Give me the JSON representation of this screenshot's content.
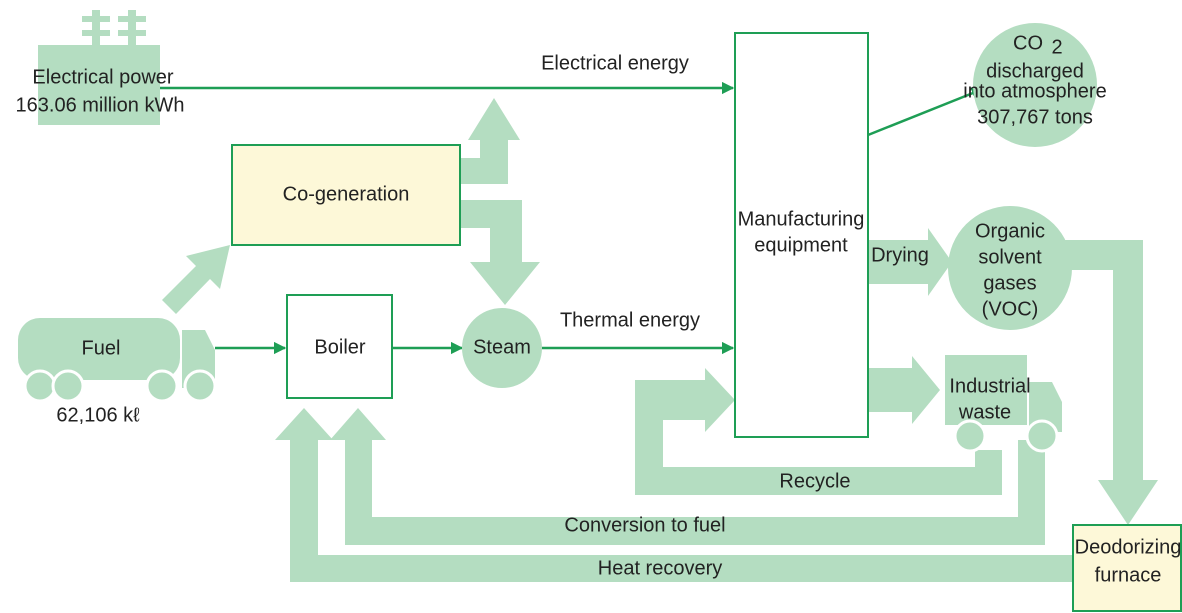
{
  "power": {
    "label": "Electrical power",
    "amount": "163.06 million kWh"
  },
  "flows": {
    "electrical": "Electrical energy",
    "thermal": "Thermal energy",
    "drying": "Drying",
    "recycle": "Recycle",
    "conversion": "Conversion to fuel",
    "heat": "Heat recovery"
  },
  "nodes": {
    "cogeneration": "Co-generation",
    "manufacturing": [
      "Manufacturing",
      "equipment"
    ],
    "co2": {
      "formula": "CO",
      "subscript": "2",
      "lines": [
        "discharged",
        "into atmosphere"
      ],
      "amount": "307,767 tons"
    },
    "voc": [
      "Organic",
      "solvent",
      "gases",
      "(VOC)"
    ],
    "fuel": {
      "label": "Fuel",
      "amount": "62,106 kℓ"
    },
    "boiler": "Boiler",
    "steam": "Steam",
    "waste": [
      "Industrial",
      "waste"
    ],
    "furnace": [
      "Deodorizing",
      "furnace"
    ]
  }
}
